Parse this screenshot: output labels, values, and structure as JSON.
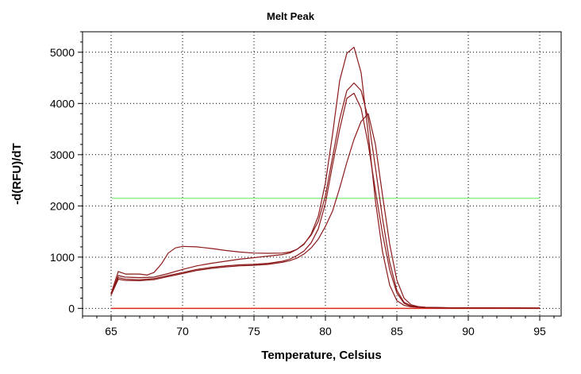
{
  "chart_data": {
    "type": "line",
    "title": "Melt Peak",
    "xlabel": "Temperature, Celsius",
    "ylabel": "-d(RFU)/dT",
    "xlim": [
      63,
      96.5
    ],
    "ylim": [
      -150,
      5400
    ],
    "xticks": [
      65,
      70,
      75,
      80,
      85,
      90,
      95
    ],
    "yticks": [
      0,
      1000,
      2000,
      3000,
      4000,
      5000
    ],
    "grid": true,
    "threshold": {
      "value": 2150,
      "x_range": [
        65,
        95
      ],
      "color": "#90EE90"
    },
    "series_color": "#8B1A1A",
    "baseline_color": "#E0281E",
    "series": [
      {
        "x": [
          65,
          65.5,
          66,
          66.5,
          67,
          67.5,
          68,
          68.5,
          69,
          69.5,
          70,
          71,
          72,
          73,
          74,
          75,
          76,
          77,
          77.5,
          78,
          78.5,
          79,
          79.5,
          80,
          80.5,
          81,
          81.5,
          82,
          82.5,
          83,
          83.5,
          84,
          84.5,
          85,
          85.5,
          86,
          86.5,
          87,
          88,
          89,
          90,
          95
        ],
        "y": [
          290,
          720,
          670,
          670,
          670,
          650,
          700,
          860,
          1080,
          1180,
          1210,
          1200,
          1170,
          1130,
          1100,
          1080,
          1075,
          1080,
          1100,
          1150,
          1250,
          1450,
          1800,
          2450,
          3400,
          4450,
          4980,
          5100,
          4600,
          3400,
          2100,
          1100,
          450,
          150,
          60,
          30,
          20,
          15,
          10,
          10,
          10,
          5
        ]
      },
      {
        "x": [
          65,
          65.5,
          66,
          67,
          68,
          69,
          70,
          71,
          72,
          73,
          74,
          75,
          76,
          77,
          77.5,
          78,
          78.5,
          79,
          79.5,
          80,
          80.5,
          81,
          81.5,
          82,
          82.5,
          83,
          83.5,
          84,
          84.5,
          85,
          85.5,
          86,
          86.5,
          87,
          88,
          89,
          90,
          95
        ],
        "y": [
          280,
          640,
          610,
          600,
          610,
          680,
          760,
          830,
          880,
          920,
          960,
          990,
          1020,
          1050,
          1080,
          1150,
          1260,
          1430,
          1700,
          2200,
          2950,
          3700,
          4250,
          4400,
          4250,
          3700,
          2750,
          1750,
          900,
          350,
          120,
          50,
          30,
          20,
          15,
          10,
          10,
          5
        ]
      },
      {
        "x": [
          65,
          65.5,
          66,
          67,
          68,
          69,
          70,
          71,
          72,
          73,
          74,
          75,
          76,
          77,
          77.5,
          78,
          78.5,
          79,
          79.5,
          80,
          80.5,
          81,
          81.5,
          82,
          82.5,
          83,
          83.5,
          84,
          84.5,
          85,
          85.5,
          86,
          86.5,
          87,
          88,
          89,
          90,
          95
        ],
        "y": [
          270,
          600,
          570,
          560,
          580,
          640,
          700,
          760,
          800,
          830,
          850,
          860,
          880,
          920,
          960,
          1030,
          1120,
          1280,
          1550,
          2050,
          2800,
          3500,
          4100,
          4200,
          3900,
          3200,
          2300,
          1450,
          750,
          300,
          100,
          40,
          25,
          15,
          10,
          10,
          10,
          5
        ]
      },
      {
        "x": [
          65,
          65.5,
          66,
          67,
          68,
          69,
          70,
          71,
          72,
          73,
          74,
          75,
          76,
          77,
          77.5,
          78,
          78.5,
          79,
          79.5,
          80,
          80.5,
          81,
          81.5,
          82,
          82.5,
          83,
          83.5,
          84,
          84.5,
          85,
          85.5,
          86,
          86.5,
          87,
          88,
          89,
          90,
          95
        ],
        "y": [
          260,
          570,
          545,
          540,
          560,
          620,
          680,
          740,
          780,
          810,
          830,
          840,
          860,
          900,
          930,
          980,
          1060,
          1180,
          1350,
          1600,
          1900,
          2350,
          2850,
          3300,
          3650,
          3800,
          3200,
          2200,
          1250,
          550,
          200,
          70,
          35,
          20,
          15,
          10,
          10,
          5
        ]
      }
    ],
    "baseline": {
      "x": [
        65,
        95
      ],
      "y": [
        0,
        0
      ]
    }
  }
}
